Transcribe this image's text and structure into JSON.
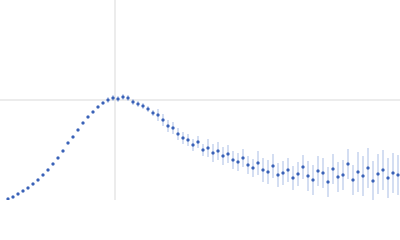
{
  "chart_data": {
    "type": "scatter",
    "color": "#3a62b8",
    "error_color": "#a9bce6",
    "xlim": [
      0,
      400
    ],
    "ylim": [
      0,
      200
    ],
    "xticks": [
      115
    ],
    "yticks": [
      100
    ],
    "grid": true,
    "x": [
      8,
      13,
      18,
      23,
      28,
      33,
      38,
      43,
      48,
      53,
      58,
      63,
      68,
      73,
      78,
      83,
      88,
      93,
      98,
      103,
      108,
      113,
      118,
      123,
      128,
      133,
      138,
      143,
      148,
      153,
      158,
      163,
      168,
      173,
      178,
      183,
      188,
      193,
      198,
      203,
      208,
      213,
      218,
      223,
      228,
      233,
      238,
      243,
      248,
      253,
      258,
      263,
      268,
      273,
      278,
      283,
      288,
      293,
      298,
      303,
      308,
      313,
      318,
      323,
      328,
      333,
      338,
      343,
      348,
      353,
      358,
      363,
      368,
      373,
      378,
      383,
      388,
      393,
      398
    ],
    "values": [
      1,
      3,
      6,
      9,
      12,
      16,
      20,
      25,
      30,
      36,
      42,
      49,
      57,
      63,
      70,
      77,
      83,
      88,
      93,
      97,
      100,
      102,
      101,
      103,
      102,
      98,
      96,
      94,
      91,
      87,
      85,
      80,
      74,
      72,
      66,
      62,
      60,
      55,
      58,
      50,
      52,
      47,
      49,
      44,
      46,
      40,
      38,
      42,
      35,
      32,
      37,
      30,
      28,
      34,
      25,
      27,
      30,
      22,
      26,
      33,
      24,
      20,
      29,
      27,
      18,
      31,
      23,
      25,
      36,
      20,
      28,
      24,
      32,
      19,
      26,
      30,
      22,
      27,
      25
    ],
    "errors": [
      1,
      1,
      1,
      1,
      1,
      1,
      1,
      1,
      1,
      1,
      1,
      1,
      1,
      1,
      1,
      1,
      1,
      1,
      1,
      1,
      3,
      3,
      3,
      3,
      3,
      3,
      3,
      3,
      3,
      3,
      6,
      6,
      6,
      6,
      6,
      6,
      6,
      6,
      6,
      6,
      9,
      9,
      9,
      9,
      9,
      9,
      9,
      9,
      9,
      9,
      12,
      12,
      12,
      12,
      12,
      12,
      12,
      12,
      12,
      12,
      15,
      15,
      15,
      15,
      15,
      15,
      15,
      15,
      15,
      15,
      20,
      20,
      20,
      20,
      20,
      20,
      20,
      20,
      20
    ]
  }
}
